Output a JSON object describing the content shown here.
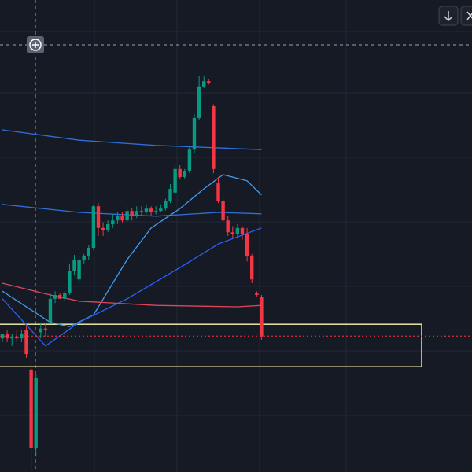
{
  "chart_data": {
    "type": "candlestick",
    "up_color": "#089981",
    "down_color": "#f23645",
    "ylim": [
      0,
      100
    ],
    "open": [
      28.3,
      29.2,
      28.3,
      28.7,
      28.3,
      30,
      21.7,
      5,
      29.6,
      30.4,
      31.7,
      36.7,
      37.5,
      36.7,
      37.9,
      42.5,
      40.8,
      45,
      45.8,
      47.5,
      56.3,
      51.7,
      51.3,
      52.5,
      53.3,
      54.2,
      53.3,
      55.3,
      54.2,
      55.3,
      55,
      55.8,
      55,
      55.3,
      55.8,
      57.5,
      59.2,
      64.2,
      62.5,
      63.7,
      68.3,
      75,
      81.7,
      82.8,
      77.5,
      61.3,
      57.5,
      53.3,
      50.8,
      50.4,
      51.7,
      50.4,
      45.8,
      37.9,
      37
    ],
    "high": [
      29.2,
      30,
      29.2,
      30,
      30,
      30.8,
      23,
      20.8,
      31.7,
      31.7,
      38,
      38.3,
      38,
      38.3,
      44.2,
      46,
      45.8,
      46.2,
      48,
      56.7,
      57,
      52.9,
      53.3,
      54.6,
      55,
      55,
      56.3,
      56,
      56.3,
      56.3,
      56.7,
      56.3,
      56.3,
      56.7,
      57.9,
      61,
      65,
      65,
      64.2,
      69,
      75.8,
      84,
      83.8,
      83.3,
      77.9,
      62.5,
      58,
      54.2,
      52.1,
      52.5,
      52.1,
      51.7,
      46.2,
      38.3,
      37.5
    ],
    "low": [
      27.5,
      27.5,
      26.7,
      27.5,
      27.5,
      24.2,
      0.3,
      3.3,
      28.3,
      28.7,
      31.7,
      35.8,
      36.7,
      36.2,
      37.5,
      41.7,
      40,
      44.2,
      45,
      47,
      50,
      50,
      50.8,
      51.7,
      52.5,
      52.9,
      52.9,
      53.3,
      53.8,
      54.2,
      54.6,
      54.2,
      54.6,
      55,
      55.4,
      57,
      58.8,
      62,
      62,
      63.3,
      67.5,
      74.6,
      81.3,
      82.1,
      63.3,
      57,
      53,
      50,
      49.6,
      49.6,
      49.2,
      44.6,
      40,
      37.1,
      28
    ],
    "close": [
      29.2,
      28.3,
      28.7,
      28.3,
      29.2,
      25,
      5,
      20,
      30.4,
      30,
      36.7,
      37.5,
      36.7,
      37.9,
      42.5,
      45,
      45,
      45.8,
      47.5,
      56.3,
      51.7,
      51.3,
      52.5,
      53.3,
      54.2,
      53.3,
      55.3,
      54.2,
      55.3,
      55,
      55.8,
      55,
      55.3,
      55.8,
      57.5,
      60,
      64.2,
      62.5,
      63.7,
      68.3,
      75,
      81.7,
      82.8,
      82.5,
      64.2,
      57.5,
      53.3,
      50.8,
      50.4,
      51.7,
      50.4,
      45.8,
      40.8,
      37.5,
      28.7
    ],
    "series": [
      {
        "color": "#2f6fd6",
        "x": [
          0,
          16,
          32,
          54
        ],
        "values": [
          72.5,
          70.3,
          69.2,
          68.3
        ]
      },
      {
        "color": "#2f6fd6",
        "x": [
          0,
          16,
          32,
          45,
          54
        ],
        "values": [
          56.7,
          55,
          54.2,
          55,
          54.7
        ]
      },
      {
        "color": "#3f9cf0",
        "x": [
          0,
          10,
          14,
          19,
          26,
          31,
          37,
          42,
          46,
          51,
          54
        ],
        "values": [
          38.3,
          31.7,
          30.8,
          33.3,
          45,
          51.7,
          55.8,
          60,
          63,
          61.7,
          58.7
        ]
      },
      {
        "color": "#2962ff",
        "x": [
          0,
          9,
          16,
          26,
          37,
          45,
          54
        ],
        "values": [
          36.7,
          26.7,
          31.7,
          36.7,
          43.3,
          48.3,
          51.7
        ]
      },
      {
        "color": "#e0455a",
        "x": [
          0,
          10,
          16,
          32,
          49,
          54
        ],
        "values": [
          40,
          37.5,
          36.2,
          35.3,
          35,
          35.3
        ]
      }
    ],
    "zone": {
      "top": 31.3,
      "bottom": 22.3,
      "color": "#e8e6a0"
    },
    "price_line": 28.8,
    "grid": true
  }
}
